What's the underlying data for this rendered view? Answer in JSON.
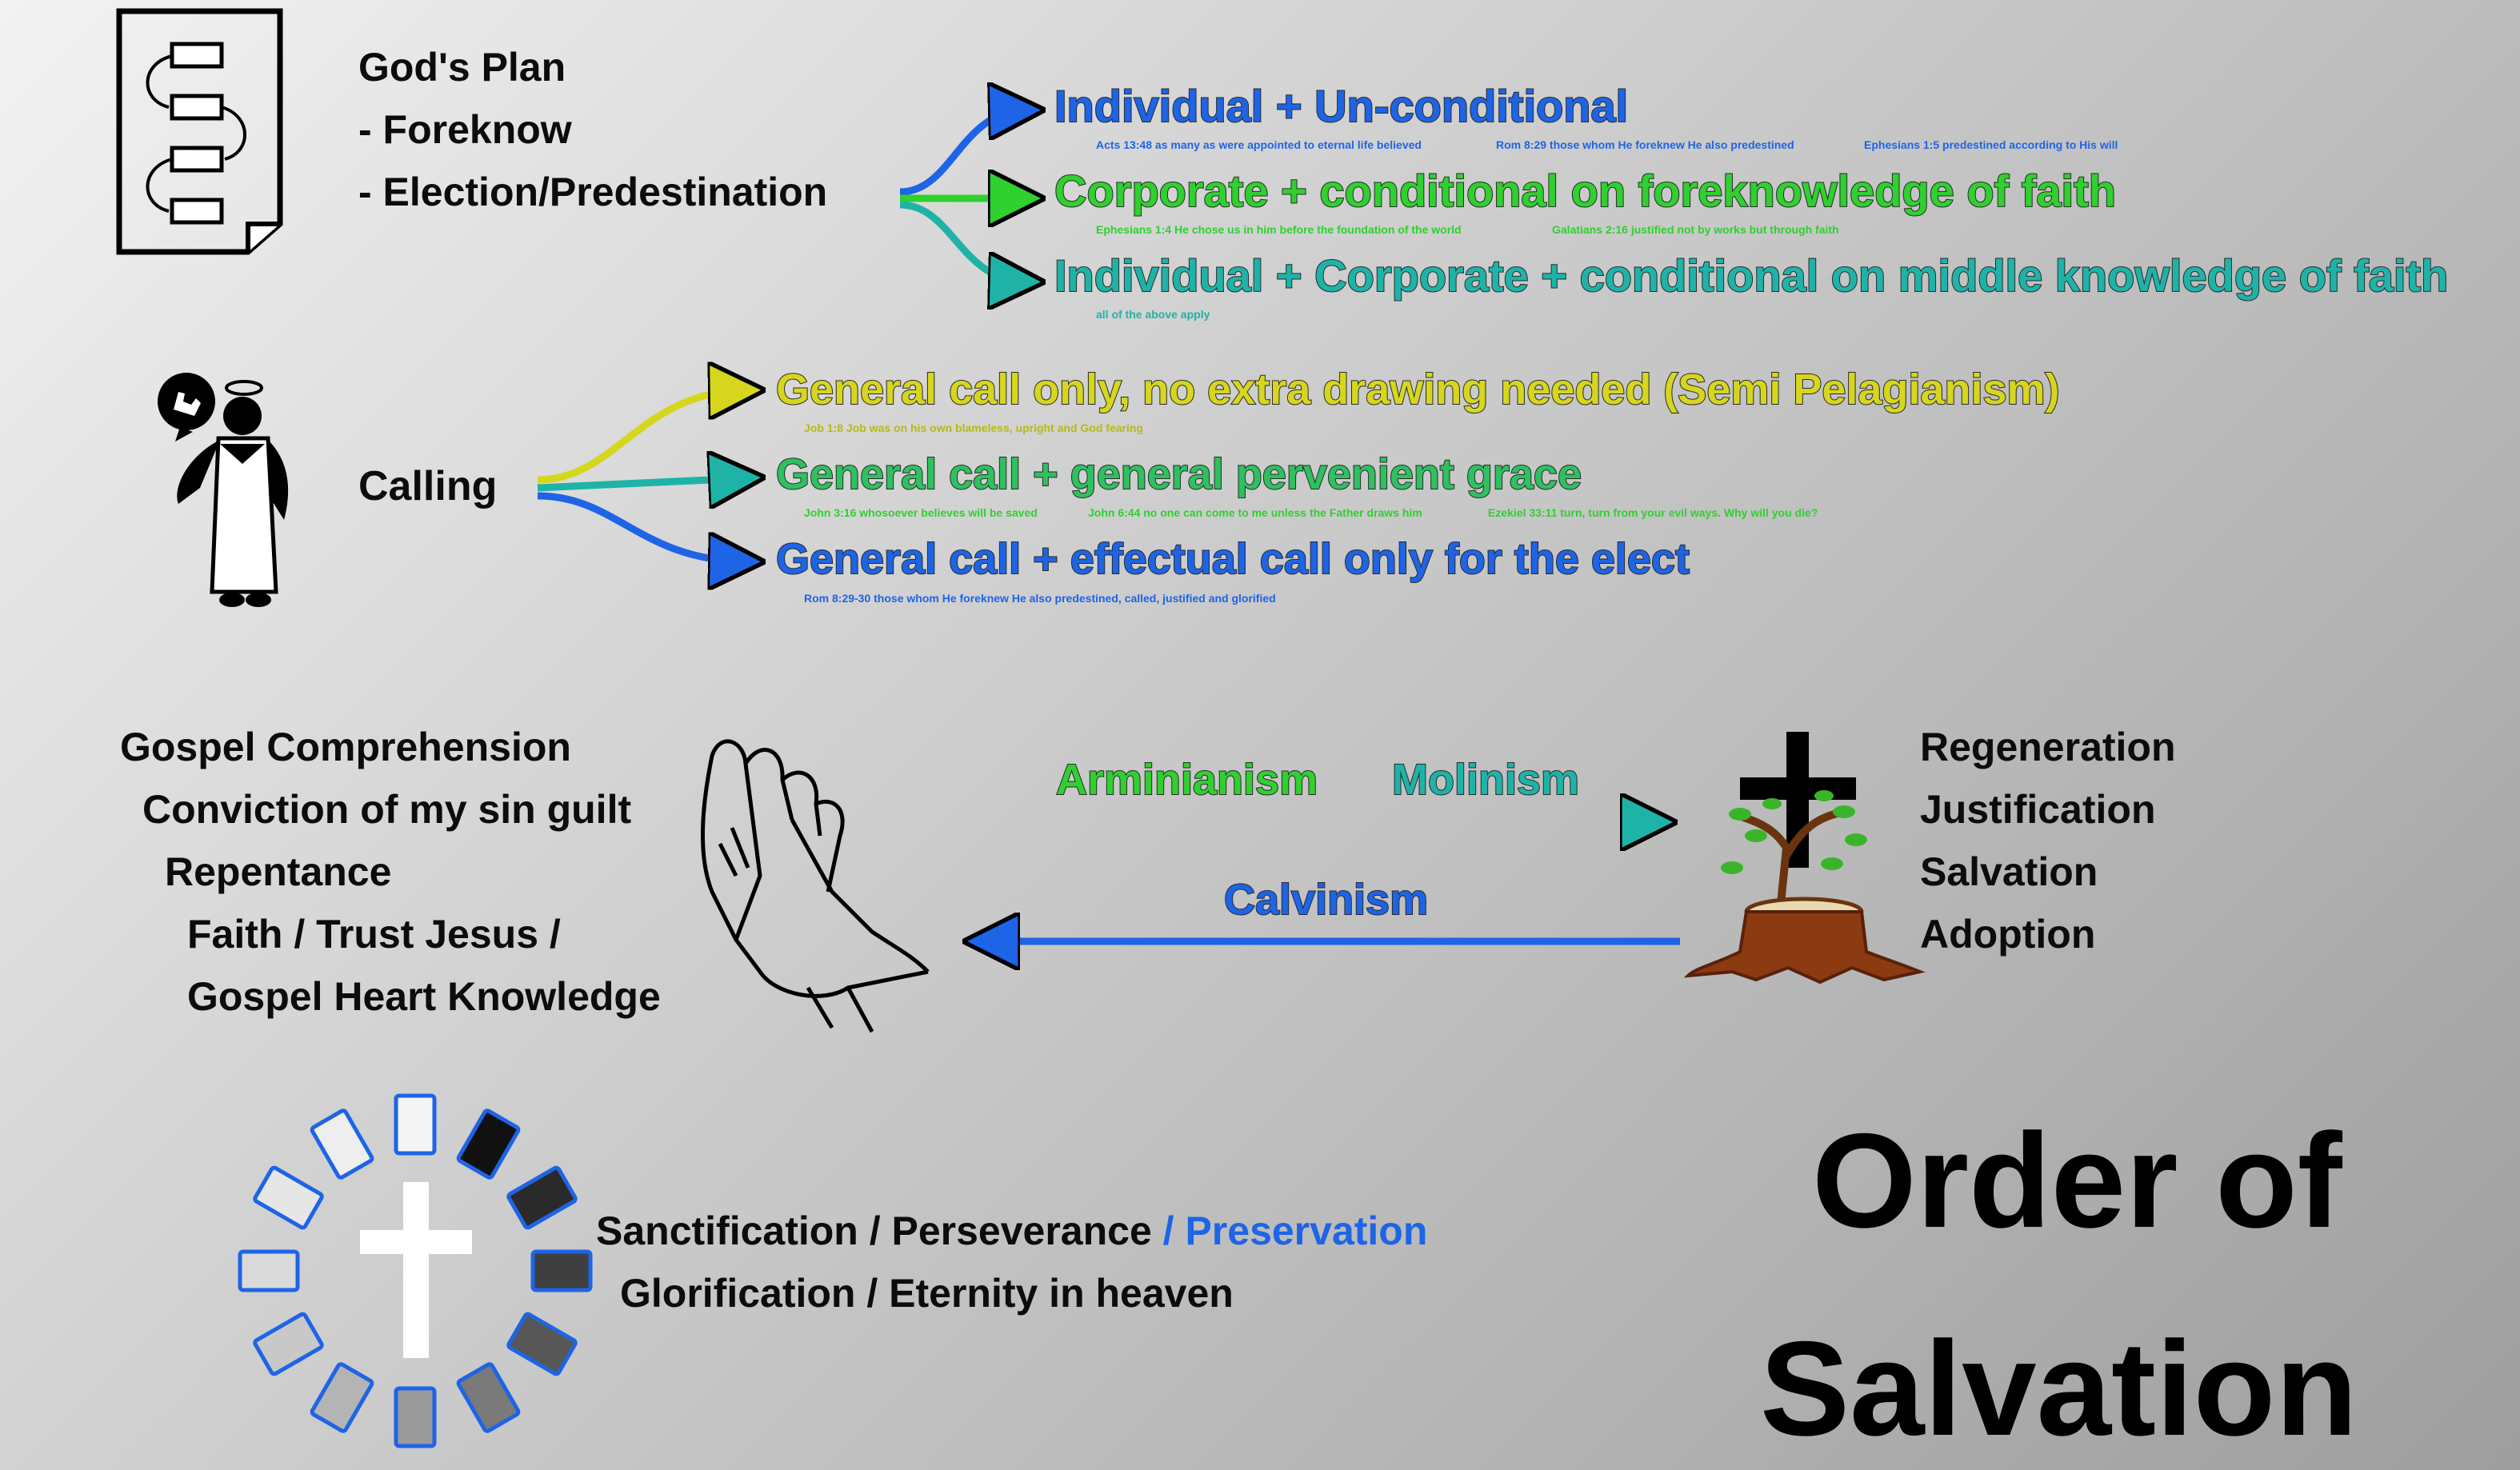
{
  "colors": {
    "blue": "#1e64e6",
    "green": "#2fd02f",
    "teal": "#1fb3a8",
    "yellow": "#d6d61e",
    "black": "#0c0c0c"
  },
  "plan": {
    "title": "God's Plan",
    "item1": "- Foreknow",
    "item2": "- Election/Predestination",
    "options": [
      {
        "text": "Individual  +  Un-conditional",
        "refs": [
          "Acts 13:48 as many as were appointed to eternal life believed",
          "Rom 8:29 those whom He foreknew He also predestined",
          "Ephesians 1:5 predestined according to His will"
        ]
      },
      {
        "text": "Corporate  +  conditional on foreknowledge of faith",
        "refs": [
          "Ephesians 1:4 He chose us in him before the foundation of the world",
          "Galatians 2:16 justified not by works but through faith"
        ]
      },
      {
        "text": "Individual + Corporate  +  conditional on middle knowledge of faith",
        "refs": [
          "all of the above apply"
        ]
      }
    ]
  },
  "calling": {
    "label": "Calling",
    "options": [
      {
        "text": "General call only, no extra drawing needed (Semi Pelagianism)",
        "refs": [
          "Job 1:8 Job was on his own blameless, upright and God fearing"
        ]
      },
      {
        "text": "General call  +  general pervenient grace",
        "refs": [
          "John 3:16 whosoever believes will be saved",
          "John 6:44 no one can come to me unless the Father draws him",
          "Ezekiel 33:11 turn, turn from your evil ways. Why will you die?"
        ]
      },
      {
        "text": "General call  +  effectual call only for the elect",
        "refs": [
          "Rom 8:29-30 those whom He foreknew He also predestined, called, justified and glorified"
        ]
      }
    ]
  },
  "response": {
    "lines": [
      "Gospel Comprehension",
      "Conviction of my sin guilt",
      "Repentance",
      "Faith / Trust Jesus /",
      "Gospel Heart Knowledge"
    ]
  },
  "views": {
    "arminianism": "Arminianism",
    "molinism": "Molinism",
    "calvinism": "Calvinism"
  },
  "results": [
    "Regeneration",
    "Justification",
    "Salvation",
    "Adoption"
  ],
  "final": {
    "line1_prefix": "Sanctification / Perseverance ",
    "line1_highlight": " / Preservation",
    "line2": "Glorification / Eternity in heaven"
  },
  "title": {
    "line1": "Order of",
    "line2": "Salvation"
  }
}
